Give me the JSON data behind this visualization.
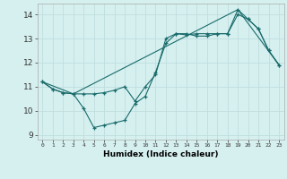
{
  "xlabel": "Humidex (Indice chaleur)",
  "background_color": "#d6f0f0",
  "grid_color": "#c0dede",
  "line_color": "#1a6b6b",
  "xlim": [
    -0.5,
    23.5
  ],
  "ylim": [
    8.8,
    14.45
  ],
  "xticks": [
    0,
    1,
    2,
    3,
    4,
    5,
    6,
    7,
    8,
    9,
    10,
    11,
    12,
    13,
    14,
    15,
    16,
    17,
    18,
    19,
    20,
    21,
    22,
    23
  ],
  "yticks": [
    9,
    10,
    11,
    12,
    13,
    14
  ],
  "line1_x": [
    0,
    1,
    2,
    3,
    4,
    5,
    6,
    7,
    8,
    9,
    10,
    11,
    12,
    13,
    14,
    15,
    16,
    17,
    18,
    19,
    20,
    21,
    22,
    23
  ],
  "line1_y": [
    11.2,
    10.9,
    10.75,
    10.7,
    10.7,
    10.7,
    10.75,
    10.85,
    11.0,
    10.4,
    11.0,
    11.5,
    13.0,
    13.2,
    13.15,
    13.2,
    13.2,
    13.2,
    13.2,
    14.0,
    13.8,
    13.4,
    12.5,
    11.9
  ],
  "line2_x": [
    0,
    1,
    2,
    3,
    4,
    5,
    6,
    7,
    8,
    9,
    10,
    11,
    12,
    13,
    14,
    15,
    16,
    17,
    18,
    19,
    20,
    21,
    22,
    23
  ],
  "line2_y": [
    11.2,
    10.9,
    10.75,
    10.7,
    10.1,
    9.3,
    9.4,
    9.5,
    9.6,
    10.3,
    10.6,
    11.6,
    12.8,
    13.2,
    13.2,
    13.1,
    13.1,
    13.2,
    13.2,
    14.2,
    13.8,
    13.4,
    12.5,
    11.9
  ],
  "line3_x": [
    0,
    3,
    19,
    23
  ],
  "line3_y": [
    11.2,
    10.7,
    14.2,
    11.9
  ]
}
